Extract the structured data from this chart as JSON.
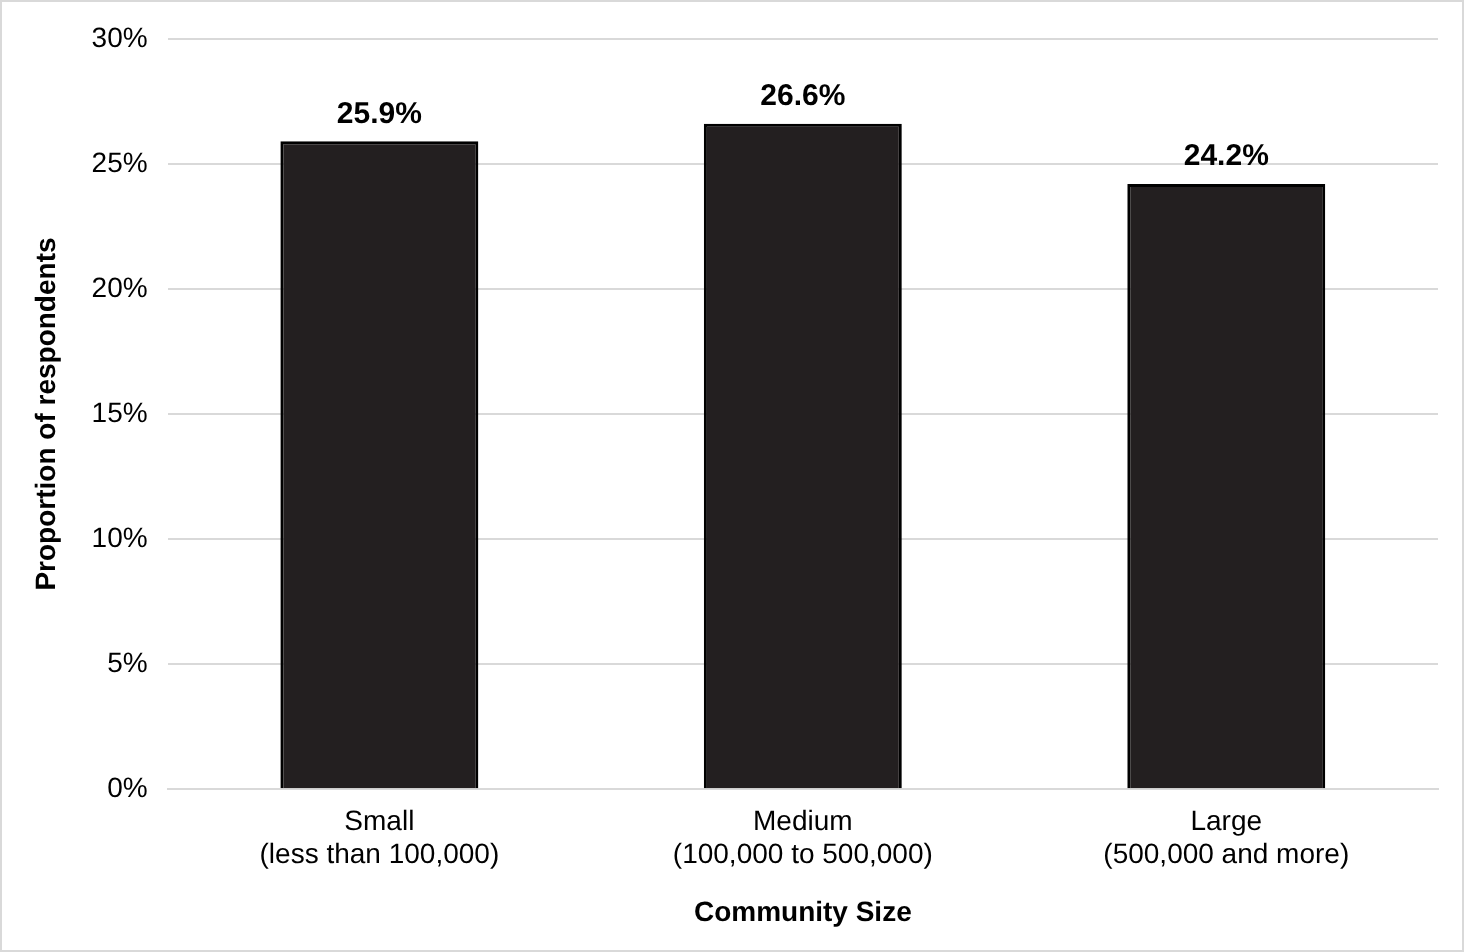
{
  "chart_data": {
    "type": "bar",
    "xlabel": "Community Size",
    "ylabel": "Proportion of respondents",
    "categories": [
      "Small\n(less than 100,000)",
      "Medium\n(100,000 to 500,000)",
      "Large\n(500,000 and more)"
    ],
    "values": [
      25.9,
      26.6,
      24.2
    ],
    "value_labels": [
      "25.9%",
      "26.6%",
      "24.2%"
    ],
    "color": "#231f20",
    "ylim": [
      0,
      30
    ],
    "yticks": [
      {
        "value": 0,
        "label": "0%"
      },
      {
        "value": 5,
        "label": "5%"
      },
      {
        "value": 10,
        "label": "10%"
      },
      {
        "value": 15,
        "label": "15%"
      },
      {
        "value": 20,
        "label": "20%"
      },
      {
        "value": 25,
        "label": "25%"
      },
      {
        "value": 30,
        "label": "30%"
      }
    ],
    "grid": "y",
    "legend": false
  }
}
